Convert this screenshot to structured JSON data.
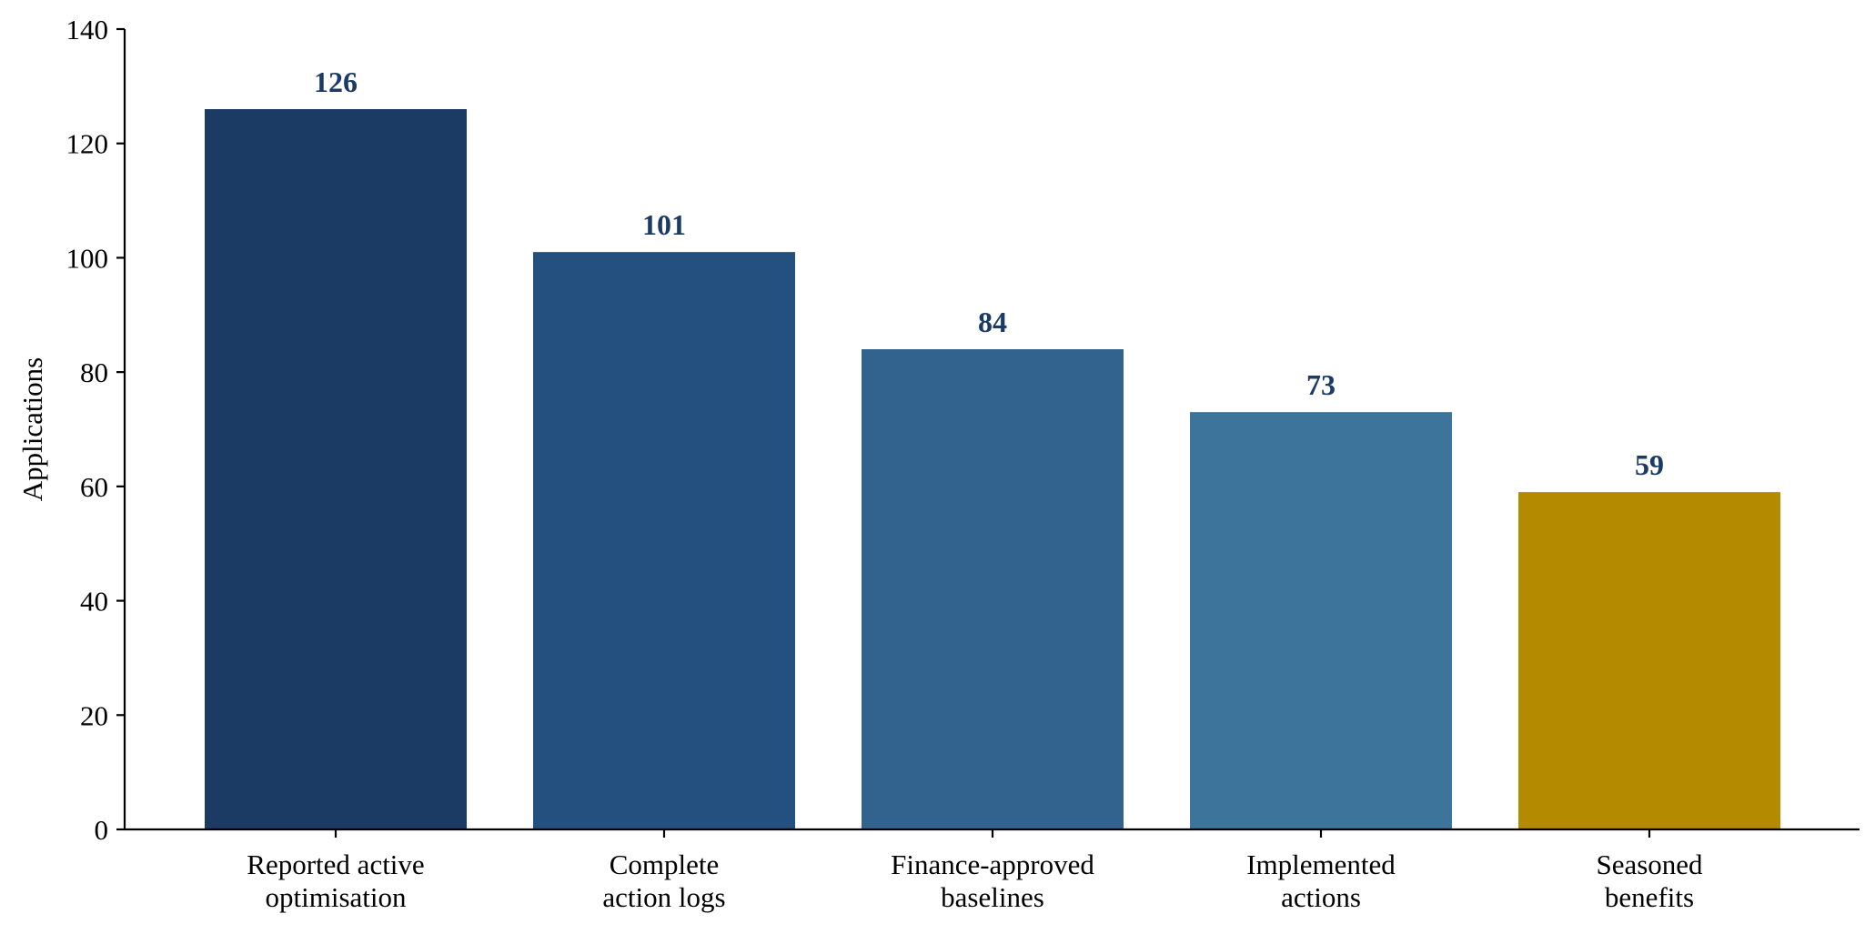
{
  "chart_data": {
    "type": "bar",
    "title": "",
    "xlabel": "",
    "ylabel": "Applications",
    "categories": [
      [
        "Reported active",
        "optimisation"
      ],
      [
        "Complete",
        "action logs"
      ],
      [
        "Finance-approved",
        "baselines"
      ],
      [
        "Implemented",
        "actions"
      ],
      [
        "Seasoned",
        "benefits"
      ]
    ],
    "values": [
      126,
      101,
      84,
      73,
      59
    ],
    "data_labels": [
      "126",
      "101",
      "84",
      "73",
      "59"
    ],
    "bar_colors": [
      "#1b3a64",
      "#245080",
      "#32638f",
      "#3d749c",
      "#b48a00"
    ],
    "label_color": "#1b3a64",
    "ylim": [
      0,
      140
    ],
    "yticks": [
      0,
      20,
      40,
      60,
      80,
      100,
      120,
      140
    ],
    "grid": false,
    "legend": "none"
  }
}
